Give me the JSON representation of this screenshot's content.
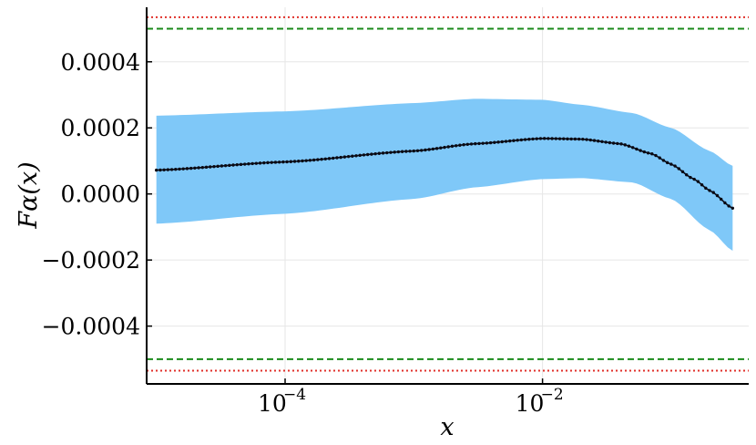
{
  "chart_data": {
    "type": "line",
    "title": "",
    "xlabel": "x",
    "ylabel": "Fα(x)",
    "xscale": "log",
    "xlim": [
      8.4e-06,
      0.4
    ],
    "ylim": [
      -0.000575,
      0.000565
    ],
    "grid": true,
    "legend": "none",
    "x_ticks": [
      {
        "value": 0.0001,
        "base": "10",
        "exp": "−4"
      },
      {
        "value": 0.01,
        "base": "10",
        "exp": "−2"
      }
    ],
    "y_ticks": [
      {
        "value": 0.0004,
        "label": "0.0004"
      },
      {
        "value": 0.0002,
        "label": "0.0002"
      },
      {
        "value": 0.0,
        "label": "0.0000"
      },
      {
        "value": -0.0002,
        "label": "−0.0002"
      },
      {
        "value": -0.0004,
        "label": "−0.0004"
      }
    ],
    "reference_lines": [
      {
        "y": 0.000535,
        "style": "dotted",
        "color": "#e0302a"
      },
      {
        "y": 0.0005,
        "style": "dashed",
        "color": "#1a8a1a"
      },
      {
        "y": -0.0005,
        "style": "dashed",
        "color": "#1a8a1a"
      },
      {
        "y": -0.000535,
        "style": "dotted",
        "color": "#e0302a"
      }
    ],
    "band": {
      "color": "#7fc8f8",
      "x": [
        1e-05,
        0.0001,
        0.001,
        0.003,
        0.01,
        0.02,
        0.05,
        0.1,
        0.2,
        0.3
      ],
      "upper": [
        0.000237,
        0.00025,
        0.000275,
        0.000288,
        0.000285,
        0.00027,
        0.000245,
        0.0002,
        0.00013,
        8.5e-05
      ],
      "lower": [
        -9e-05,
        -6e-05,
        -1.5e-05,
        2e-05,
        4.5e-05,
        4.8e-05,
        3.5e-05,
        -1.5e-05,
        -0.00011,
        -0.000172
      ]
    },
    "series": [
      {
        "color": "#0a0a14",
        "x": [
          1e-05,
          0.0001,
          0.001,
          0.003,
          0.01,
          0.02,
          0.04,
          0.07,
          0.1,
          0.15,
          0.2,
          0.3
        ],
        "y": [
          7.2e-05,
          9.7e-05,
          0.00013,
          0.000152,
          0.000168,
          0.000166,
          0.000152,
          0.000122,
          9e-05,
          4.5e-05,
          1e-05,
          -4.3e-05
        ]
      }
    ]
  }
}
